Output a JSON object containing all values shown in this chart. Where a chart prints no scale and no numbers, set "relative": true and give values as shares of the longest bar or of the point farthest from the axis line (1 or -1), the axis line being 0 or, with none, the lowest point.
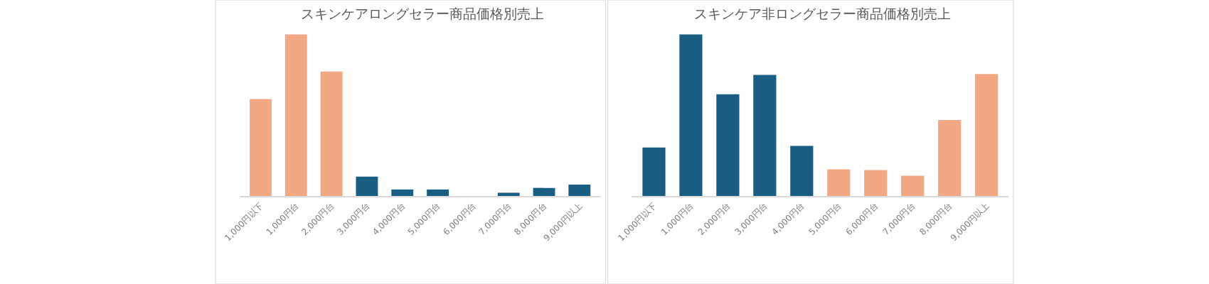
{
  "chart_data": [
    {
      "type": "bar",
      "title": "スキンケアロングセラー商品価格別売上",
      "relative": true,
      "categories": [
        "1,000円以下",
        "1,000円台",
        "2,000円台",
        "3,000円台",
        "4,000円台",
        "5,000円台",
        "6,000円台",
        "7,000円台",
        "8,000円台",
        "9,000円以上"
      ],
      "values": [
        0.6,
        1,
        0.77,
        0.12,
        0.04,
        0.04,
        0,
        0.02,
        0.05,
        0.07
      ],
      "colors": [
        "#f2a983",
        "#f2a983",
        "#f2a983",
        "#175e82",
        "#175e82",
        "#175e82",
        "#175e82",
        "#175e82",
        "#175e82",
        "#175e82"
      ]
    },
    {
      "type": "bar",
      "title": "スキンケア非ロングセラー商品価格別売上",
      "relative": true,
      "categories": [
        "1,000円以下",
        "1,000円台",
        "2,000円台",
        "3,000円台",
        "4,000円台",
        "5,000円台",
        "6,000円台",
        "7,000円台",
        "8,000円台",
        "9,000円以上"
      ],
      "values": [
        0.3,
        1,
        0.63,
        0.75,
        0.31,
        0.165,
        0.16,
        0.125,
        0.47,
        0.755
      ],
      "colors": [
        "#175e82",
        "#175e82",
        "#175e82",
        "#175e82",
        "#175e82",
        "#f2a983",
        "#f2a983",
        "#f2a983",
        "#f2a983",
        "#f2a983"
      ]
    }
  ]
}
